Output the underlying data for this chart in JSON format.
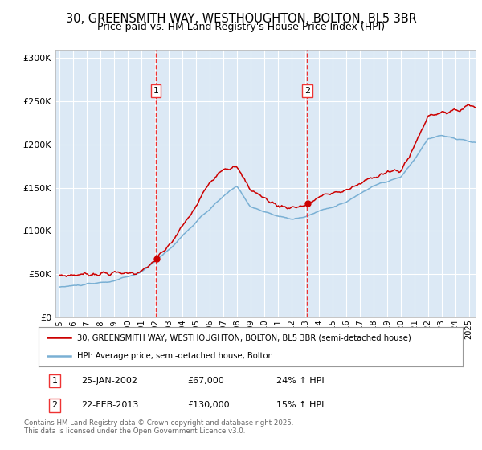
{
  "title": "30, GREENSMITH WAY, WESTHOUGHTON, BOLTON, BL5 3BR",
  "subtitle": "Price paid vs. HM Land Registry's House Price Index (HPI)",
  "ylim": [
    0,
    310000
  ],
  "yticks": [
    0,
    50000,
    100000,
    150000,
    200000,
    250000,
    300000
  ],
  "ytick_labels": [
    "£0",
    "£50K",
    "£100K",
    "£150K",
    "£200K",
    "£250K",
    "£300K"
  ],
  "xlim_start": 1994.7,
  "xlim_end": 2025.5,
  "background_color": "#ffffff",
  "plot_bg_color": "#dce9f5",
  "grid_color": "#ffffff",
  "red_line_color": "#cc0000",
  "blue_line_color": "#7ab0d4",
  "vline_color": "#ee3333",
  "marker1_x": 2002.07,
  "marker2_x": 2013.15,
  "marker1_date": "25-JAN-2002",
  "marker2_date": "22-FEB-2013",
  "marker1_price": "£67,000",
  "marker2_price": "£130,000",
  "marker1_hpi": "24% ↑ HPI",
  "marker2_hpi": "15% ↑ HPI",
  "legend_label1": "30, GREENSMITH WAY, WESTHOUGHTON, BOLTON, BL5 3BR (semi-detached house)",
  "legend_label2": "HPI: Average price, semi-detached house, Bolton",
  "footnote": "Contains HM Land Registry data © Crown copyright and database right 2025.\nThis data is licensed under the Open Government Licence v3.0.",
  "title_fontsize": 10.5,
  "subtitle_fontsize": 9
}
